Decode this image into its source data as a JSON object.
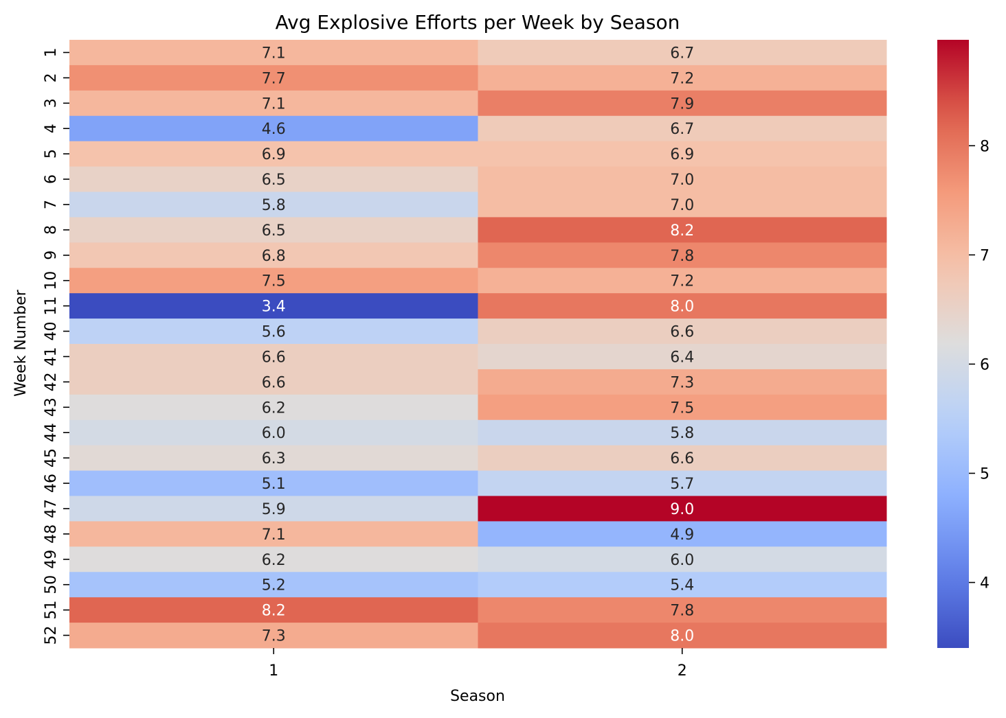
{
  "chart_data": {
    "type": "heatmap",
    "title": "Avg Explosive Efforts per Week by Season",
    "xlabel": "Season",
    "ylabel": "Week Number",
    "x_categories": [
      "1",
      "2"
    ],
    "y_categories": [
      "1",
      "2",
      "3",
      "4",
      "5",
      "6",
      "7",
      "8",
      "9",
      "10",
      "11",
      "40",
      "41",
      "42",
      "43",
      "44",
      "45",
      "46",
      "47",
      "48",
      "49",
      "50",
      "51",
      "52"
    ],
    "values": [
      [
        7.1,
        6.7
      ],
      [
        7.7,
        7.2
      ],
      [
        7.1,
        7.9
      ],
      [
        4.6,
        6.7
      ],
      [
        6.9,
        6.9
      ],
      [
        6.5,
        7.0
      ],
      [
        5.8,
        7.0
      ],
      [
        6.5,
        8.2
      ],
      [
        6.8,
        7.8
      ],
      [
        7.5,
        7.2
      ],
      [
        3.4,
        8.0
      ],
      [
        5.6,
        6.6
      ],
      [
        6.6,
        6.4
      ],
      [
        6.6,
        7.3
      ],
      [
        6.2,
        7.5
      ],
      [
        6.0,
        5.8
      ],
      [
        6.3,
        6.6
      ],
      [
        5.1,
        5.7
      ],
      [
        5.9,
        9.0
      ],
      [
        7.1,
        4.9
      ],
      [
        6.2,
        6.0
      ],
      [
        5.2,
        5.4
      ],
      [
        8.2,
        7.8
      ],
      [
        7.3,
        8.0
      ]
    ],
    "colormap": "coolwarm",
    "colorbar": {
      "range": [
        3.4,
        8.97
      ],
      "ticks": [
        "4",
        "5",
        "6",
        "7",
        "8"
      ]
    },
    "annotation_format": "one decimal"
  }
}
